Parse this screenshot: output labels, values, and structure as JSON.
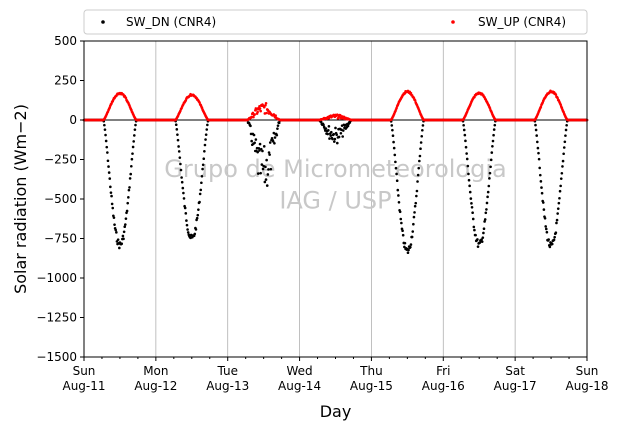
{
  "chart_data": {
    "type": "scatter",
    "title": "",
    "xlabel": "Day",
    "ylabel": "Solar radiation (Wm−2)",
    "ylim": [
      -1500,
      500
    ],
    "yticks": [
      500,
      250,
      0,
      -250,
      -500,
      -750,
      -1000,
      -1250,
      -1500
    ],
    "x_range_days": [
      0,
      7
    ],
    "x_ticks": [
      {
        "day": 0,
        "weekday": "Sun",
        "date": "Aug-11"
      },
      {
        "day": 1,
        "weekday": "Mon",
        "date": "Aug-12"
      },
      {
        "day": 2,
        "weekday": "Tue",
        "date": "Aug-13"
      },
      {
        "day": 3,
        "weekday": "Wed",
        "date": "Aug-14"
      },
      {
        "day": 4,
        "weekday": "Thu",
        "date": "Aug-15"
      },
      {
        "day": 5,
        "weekday": "Fri",
        "date": "Aug-16"
      },
      {
        "day": 6,
        "weekday": "Sat",
        "date": "Aug-17"
      },
      {
        "day": 7,
        "weekday": "Sun",
        "date": "Aug-18"
      }
    ],
    "grid": "vertical",
    "zero_line": true,
    "legend_placement": "top, above plot",
    "series": [
      {
        "name": "SW_DN (CNR4)",
        "color": "#000000",
        "daily_peak": [
          -790,
          -750,
          -470,
          -150,
          -830,
          -790,
          -800
        ],
        "daily_profile": [
          "clear",
          "clear",
          "cloudy",
          "overcast",
          "clear",
          "clear",
          "clear"
        ]
      },
      {
        "name": "SW_UP (CNR4)",
        "color": "#ff0000",
        "daily_peak": [
          170,
          160,
          110,
          35,
          180,
          170,
          180
        ],
        "daily_profile": [
          "clear",
          "clear",
          "cloudy",
          "overcast",
          "clear",
          "clear",
          "clear"
        ]
      }
    ],
    "watermark": [
      "Grupo de Micrometeorologia",
      "IAG / USP"
    ]
  }
}
